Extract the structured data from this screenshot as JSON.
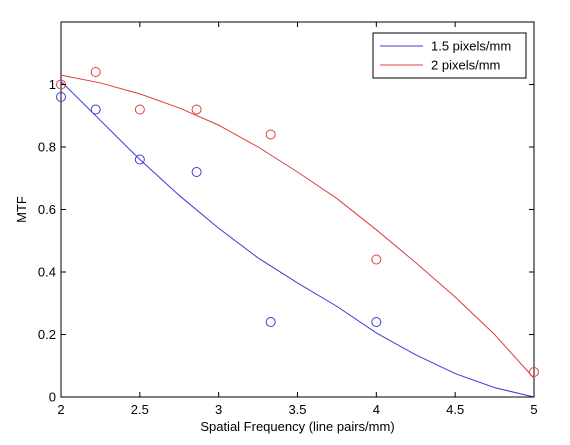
{
  "chart_data": {
    "type": "scatter",
    "title": "",
    "xlabel": "Spatial Frequency (line pairs/mm)",
    "ylabel": "MTF",
    "xlim": [
      2,
      5
    ],
    "ylim": [
      0,
      1.2
    ],
    "xticks": [
      2,
      2.5,
      3,
      3.5,
      4,
      4.5,
      5
    ],
    "xtick_labels": [
      "2",
      "2.5",
      "3",
      "3.5",
      "4",
      "4.5",
      "5"
    ],
    "yticks": [
      0,
      0.2,
      0.4,
      0.6,
      0.8,
      1
    ],
    "ytick_labels": [
      "0",
      "0.2",
      "0.4",
      "0.6",
      "0.8",
      "1"
    ],
    "grid": false,
    "legend_position": "top-right",
    "series": [
      {
        "name": "1.5 pixels/mm",
        "color": "#3b3bd6",
        "points_x": [
          2,
          2.22,
          2.5,
          2.86,
          3.33,
          4
        ],
        "points_y": [
          0.96,
          0.92,
          0.76,
          0.72,
          0.24,
          0.24
        ],
        "fit_x": [
          2,
          2.25,
          2.5,
          2.75,
          3,
          3.25,
          3.5,
          3.75,
          4,
          4.25,
          4.5,
          4.75,
          5
        ],
        "fit_y": [
          1.01,
          0.885,
          0.76,
          0.645,
          0.54,
          0.445,
          0.365,
          0.29,
          0.205,
          0.135,
          0.075,
          0.03,
          0.0
        ]
      },
      {
        "name": "2 pixels/mm",
        "color": "#e03c3c",
        "points_x": [
          2,
          2.22,
          2.5,
          2.86,
          3.33,
          4,
          5
        ],
        "points_y": [
          1.0,
          1.04,
          0.92,
          0.92,
          0.84,
          0.44,
          0.08
        ],
        "fit_x": [
          2,
          2.25,
          2.5,
          2.75,
          3,
          3.25,
          3.5,
          3.75,
          4,
          4.25,
          4.5,
          4.75,
          5
        ],
        "fit_y": [
          1.03,
          1.005,
          0.97,
          0.925,
          0.87,
          0.8,
          0.72,
          0.635,
          0.535,
          0.43,
          0.32,
          0.2,
          0.06
        ]
      }
    ]
  }
}
